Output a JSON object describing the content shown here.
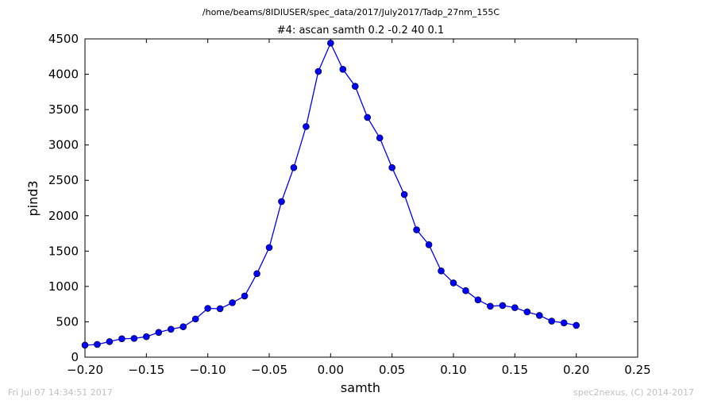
{
  "header": {
    "path": "/home/beams/8IDIUSER/spec_data/2017/July2017/Tadp_27nm_155C",
    "scan_title": "#4: ascan  samth 0.2 -0.2  40 0.1"
  },
  "footer": {
    "timestamp": "Fri Jul 07 14:34:51 2017",
    "credit": "spec2nexus, (C) 2014-2017"
  },
  "colors": {
    "series": "#0000ff",
    "axes": "#000000",
    "footer": "#c0c0c0"
  },
  "chart_data": {
    "type": "line",
    "title": "#4: ascan  samth 0.2 -0.2  40 0.1",
    "xlabel": "samth",
    "ylabel": "pind3",
    "xlim": [
      -0.2,
      0.25
    ],
    "ylim": [
      0,
      4500
    ],
    "grid": false,
    "xticks": [
      -0.2,
      -0.15,
      -0.1,
      -0.05,
      0.0,
      0.05,
      0.1,
      0.15,
      0.2,
      0.25
    ],
    "xtick_labels": [
      "−0.20",
      "−0.15",
      "−0.10",
      "−0.05",
      "0.00",
      "0.05",
      "0.10",
      "0.15",
      "0.20",
      "0.25"
    ],
    "yticks": [
      0,
      500,
      1000,
      1500,
      2000,
      2500,
      3000,
      3500,
      4000,
      4500
    ],
    "ytick_labels": [
      "0",
      "500",
      "1000",
      "1500",
      "2000",
      "2500",
      "3000",
      "3500",
      "4000",
      "4500"
    ],
    "series": [
      {
        "marker": "circle",
        "x": [
          -0.2,
          -0.19,
          -0.18,
          -0.17,
          -0.16,
          -0.15,
          -0.14,
          -0.13,
          -0.12,
          -0.11,
          -0.1,
          -0.09,
          -0.08,
          -0.07,
          -0.06,
          -0.05,
          -0.04,
          -0.03,
          -0.02,
          -0.01,
          0.0,
          0.01,
          0.02,
          0.03,
          0.04,
          0.05,
          0.06,
          0.07,
          0.08,
          0.09,
          0.1,
          0.11,
          0.12,
          0.13,
          0.14,
          0.15,
          0.16,
          0.17,
          0.18,
          0.19,
          0.2
        ],
        "y": [
          170,
          180,
          220,
          260,
          265,
          290,
          350,
          395,
          430,
          540,
          690,
          685,
          770,
          865,
          1180,
          1550,
          2200,
          2680,
          3260,
          4040,
          4440,
          4070,
          3830,
          3390,
          3100,
          2680,
          2300,
          1800,
          1590,
          1220,
          1050,
          940,
          810,
          720,
          730,
          700,
          640,
          590,
          510,
          485,
          450
        ]
      }
    ]
  }
}
